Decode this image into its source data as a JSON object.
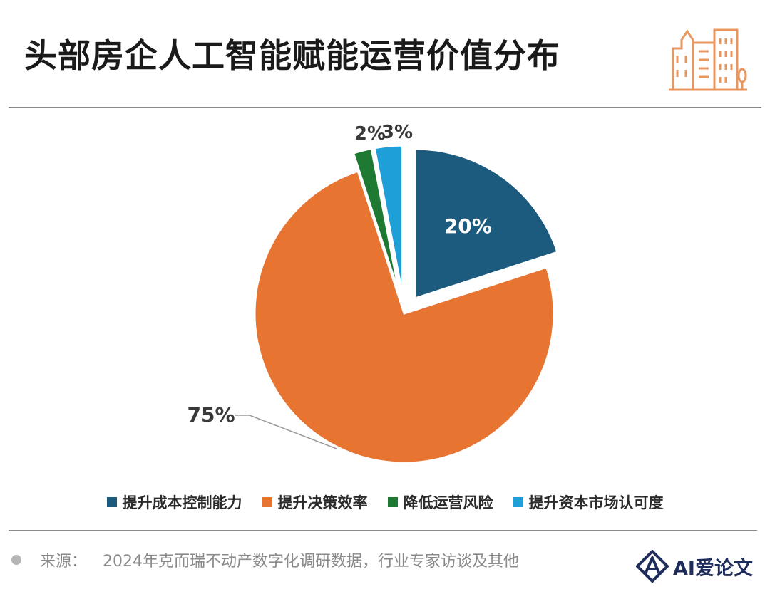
{
  "header": {
    "title": "头部房企人工智能赋能运营价值分布",
    "icon": "building-icon"
  },
  "chart_data": {
    "type": "pie",
    "title": "头部房企人工智能赋能运营价值分布",
    "categories": [
      "提升成本控制能力",
      "提升决策效率",
      "降低运营风险",
      "提升资本市场认可度"
    ],
    "values": [
      20,
      75,
      2,
      3
    ],
    "labels": [
      "20%",
      "75%",
      "2%",
      "3%"
    ],
    "colors": [
      "#1c5a7e",
      "#e87431",
      "#1e7a32",
      "#1e9fd8"
    ],
    "label_colors": [
      "#ffffff",
      "#3a3a3a",
      "#3a3a3a",
      "#3a3a3a"
    ],
    "exploded": [
      true,
      false,
      true,
      true
    ],
    "legend_position": "bottom"
  },
  "footer": {
    "source_label": "来源：",
    "source_text": "2024年克而瑞不动产数字化调研数据，行业专家访谈及其他",
    "brand": "AI爱论文",
    "brand_icon": "logo-icon"
  }
}
